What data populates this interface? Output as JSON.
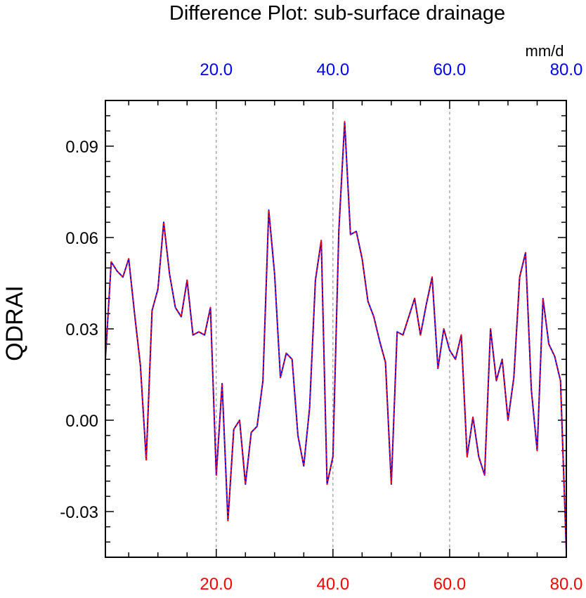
{
  "chart_data": {
    "type": "line",
    "title": "Difference Plot: sub-surface drainage",
    "ylabel": "QDRAI",
    "units_label": "mm/d",
    "xlim": [
      1,
      80
    ],
    "ylim": [
      -0.045,
      0.105
    ],
    "x_ticks_bottom": [
      "20.0",
      "40.0",
      "60.0",
      "80.0"
    ],
    "x_ticks_top": [
      "20.0",
      "40.0",
      "60.0",
      "80.0"
    ],
    "x_tick_values": [
      20,
      40,
      60,
      80
    ],
    "y_ticks": [
      "0.09",
      "0.06",
      "0.03",
      "0.00",
      "-0.03"
    ],
    "y_tick_values": [
      0.09,
      0.06,
      0.03,
      0.0,
      -0.03
    ],
    "gridlines_x": [
      20,
      40,
      60
    ],
    "colors": {
      "bottom_ticks": "#ff0000",
      "top_ticks": "#0000ff",
      "series_solid": "#0000ff",
      "series_dashed": "#ff0000",
      "grid": "#808080",
      "axis": "#000000"
    },
    "series": [
      {
        "x": [
          1,
          2,
          3,
          4,
          5,
          6,
          7,
          8,
          9,
          10,
          11,
          12,
          13,
          14,
          15,
          16,
          17,
          18,
          19,
          20,
          21,
          22,
          23,
          24,
          25,
          26,
          27,
          28,
          29,
          30,
          31,
          32,
          33,
          34,
          35,
          36,
          37,
          38,
          39,
          40,
          41,
          42,
          43,
          44,
          45,
          46,
          47,
          48,
          49,
          50,
          51,
          52,
          53,
          54,
          55,
          56,
          57,
          58,
          59,
          60,
          61,
          62,
          63,
          64,
          65,
          66,
          67,
          68,
          69,
          70,
          71,
          72,
          73,
          74,
          75,
          76,
          77,
          78,
          79,
          80
        ],
        "values": [
          0.02,
          0.052,
          0.049,
          0.047,
          0.053,
          0.035,
          0.018,
          -0.013,
          0.036,
          0.043,
          0.065,
          0.048,
          0.037,
          0.034,
          0.046,
          0.028,
          0.029,
          0.028,
          0.037,
          -0.018,
          0.012,
          -0.033,
          -0.003,
          0.0,
          -0.021,
          -0.004,
          -0.002,
          0.013,
          0.069,
          0.048,
          0.014,
          0.022,
          0.02,
          -0.005,
          -0.015,
          0.004,
          0.046,
          0.059,
          -0.021,
          -0.012,
          0.062,
          0.098,
          0.061,
          0.062,
          0.053,
          0.039,
          0.034,
          0.026,
          0.019,
          -0.021,
          0.029,
          0.028,
          0.034,
          0.04,
          0.028,
          0.038,
          0.047,
          0.017,
          0.03,
          0.023,
          0.02,
          0.028,
          -0.012,
          0.001,
          -0.012,
          -0.018,
          0.03,
          0.013,
          0.02,
          0.0,
          0.014,
          0.047,
          0.055,
          0.01,
          -0.01,
          0.04,
          0.025,
          0.021,
          0.013,
          -0.043
        ]
      }
    ]
  }
}
